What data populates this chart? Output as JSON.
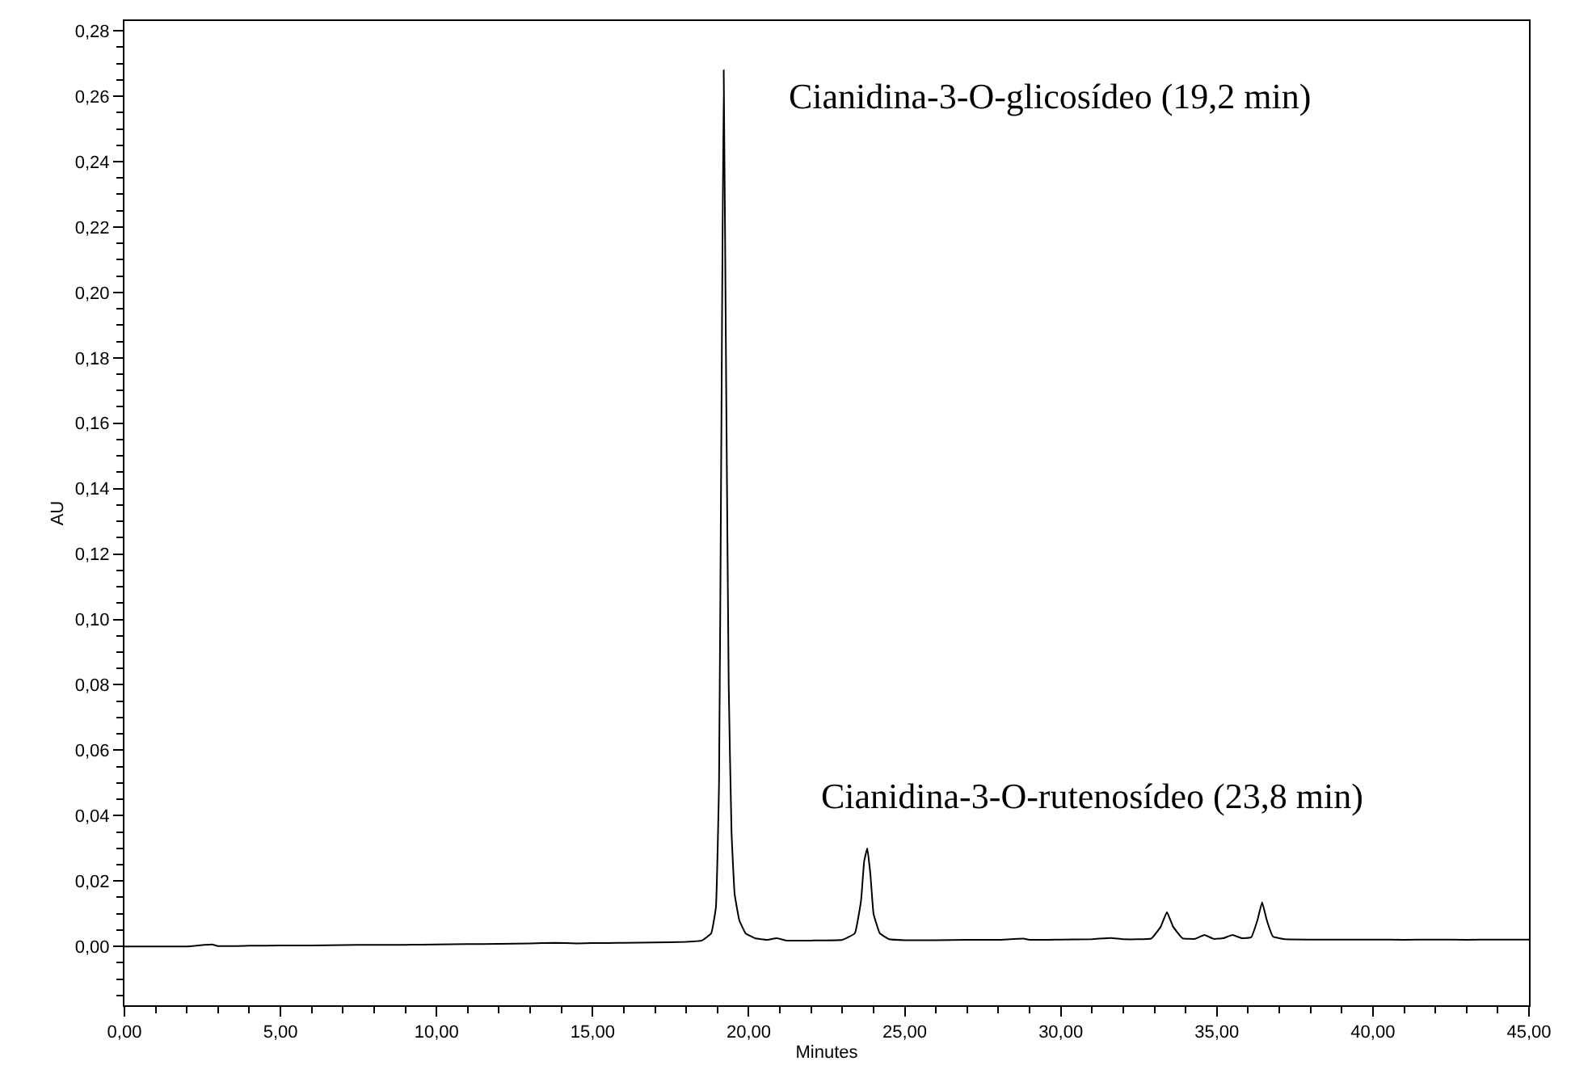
{
  "chart_data": {
    "type": "line",
    "xlabel": "Minutes",
    "ylabel": "AU",
    "x": [
      0,
      1,
      2,
      2.8,
      3,
      4,
      5,
      6,
      7,
      8,
      9,
      10,
      11,
      12,
      13,
      13.8,
      14.5,
      15,
      16,
      17,
      18,
      18.5,
      18.8,
      18.95,
      19.05,
      19.12,
      19.2,
      19.28,
      19.36,
      19.45,
      19.55,
      19.7,
      19.9,
      20.2,
      20.6,
      20.9,
      21.2,
      22,
      23,
      23.4,
      23.6,
      23.7,
      23.8,
      23.9,
      24.0,
      24.2,
      24.5,
      25,
      26,
      27,
      28,
      28.8,
      29,
      30,
      31,
      31.6,
      32,
      32.9,
      33.2,
      33.4,
      33.6,
      33.9,
      34.3,
      34.6,
      34.9,
      35.2,
      35.5,
      35.8,
      36.1,
      36.3,
      36.45,
      36.6,
      36.8,
      37.2,
      38,
      39,
      40,
      41,
      42,
      43,
      44,
      45
    ],
    "series": [
      {
        "color": "#000000",
        "values": [
          0.0,
          0.0,
          0.0,
          0.0006,
          0.0001,
          0.0002,
          0.0003,
          0.0003,
          0.0004,
          0.0005,
          0.0005,
          0.0006,
          0.0007,
          0.0008,
          0.0009,
          0.0011,
          0.0009,
          0.001,
          0.0011,
          0.0012,
          0.0014,
          0.0018,
          0.004,
          0.012,
          0.05,
          0.15,
          0.268,
          0.17,
          0.08,
          0.035,
          0.016,
          0.008,
          0.004,
          0.0025,
          0.002,
          0.0025,
          0.0018,
          0.0018,
          0.002,
          0.004,
          0.014,
          0.026,
          0.03,
          0.022,
          0.01,
          0.004,
          0.0022,
          0.0019,
          0.0019,
          0.002,
          0.002,
          0.0024,
          0.002,
          0.0021,
          0.0022,
          0.0026,
          0.0022,
          0.0024,
          0.006,
          0.0105,
          0.006,
          0.0025,
          0.0023,
          0.0035,
          0.0023,
          0.0025,
          0.0035,
          0.0025,
          0.0028,
          0.008,
          0.0135,
          0.008,
          0.003,
          0.0022,
          0.0021,
          0.0021,
          0.0021,
          0.002,
          0.0021,
          0.002,
          0.0021,
          0.0021
        ]
      }
    ],
    "xlim": [
      0,
      45
    ],
    "xticks": [
      {
        "value": 0,
        "label": "0,00"
      },
      {
        "value": 5,
        "label": "5,00"
      },
      {
        "value": 10,
        "label": "10,00"
      },
      {
        "value": 15,
        "label": "15,00"
      },
      {
        "value": 20,
        "label": "20,00"
      },
      {
        "value": 25,
        "label": "25,00"
      },
      {
        "value": 30,
        "label": "30,00"
      },
      {
        "value": 35,
        "label": "35,00"
      },
      {
        "value": 40,
        "label": "40,00"
      },
      {
        "value": 45,
        "label": "45,00"
      }
    ],
    "ylim": [
      -0.018,
      0.283
    ],
    "yticks": [
      {
        "value": 0,
        "label": "0,00"
      },
      {
        "value": 0.02,
        "label": "0,02"
      },
      {
        "value": 0.04,
        "label": "0,04"
      },
      {
        "value": 0.06,
        "label": "0,06"
      },
      {
        "value": 0.08,
        "label": "0,08"
      },
      {
        "value": 0.1,
        "label": "0,10"
      },
      {
        "value": 0.12,
        "label": "0,12"
      },
      {
        "value": 0.14,
        "label": "0,14"
      },
      {
        "value": 0.16,
        "label": "0,16"
      },
      {
        "value": 0.18,
        "label": "0,18"
      },
      {
        "value": 0.2,
        "label": "0,20"
      },
      {
        "value": 0.22,
        "label": "0,22"
      },
      {
        "value": 0.24,
        "label": "0,24"
      },
      {
        "value": 0.26,
        "label": "0,26"
      },
      {
        "value": 0.28,
        "label": "0,28"
      }
    ],
    "annotations": [
      {
        "text": "Cianidina-3-O-glicosídeo (19,2 min)",
        "x": 19.2,
        "y": 0.268
      },
      {
        "text": "Cianidina-3-O-rutenosídeo (23,8 min)",
        "x": 23.8,
        "y": 0.03
      }
    ],
    "marker": "none",
    "line_style": "solid"
  }
}
